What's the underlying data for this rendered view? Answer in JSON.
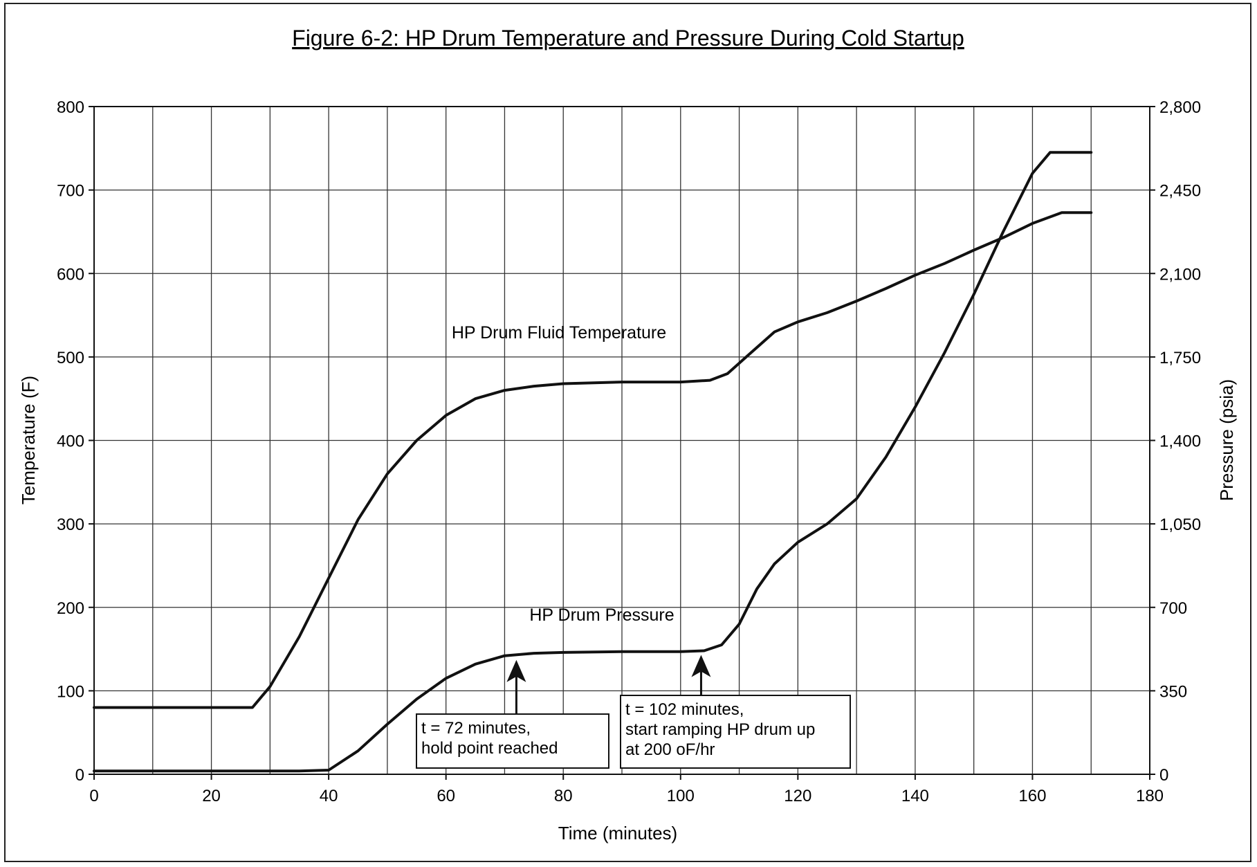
{
  "chart_data": {
    "type": "line",
    "title": "Figure 6-2: HP Drum Temperature and Pressure During Cold Startup",
    "xlabel": "Time (minutes)",
    "ylabel": "Temperature (F)",
    "y2label": "Pressure (psia)",
    "xlim": [
      0,
      180
    ],
    "ylim": [
      0,
      800
    ],
    "y2lim": [
      0,
      2800
    ],
    "x_ticks": [
      0,
      20,
      40,
      60,
      80,
      100,
      120,
      140,
      160,
      180
    ],
    "x_tick_labels": [
      "0",
      "20",
      "40",
      "60",
      "80",
      "100",
      "120",
      "140",
      "160",
      "180"
    ],
    "y_ticks": [
      0,
      100,
      200,
      300,
      400,
      500,
      600,
      700,
      800
    ],
    "y_tick_labels": [
      "0",
      "100",
      "200",
      "300",
      "400",
      "500",
      "600",
      "700",
      "800"
    ],
    "y2_ticks": [
      0,
      350,
      700,
      1050,
      1400,
      1750,
      2100,
      2450,
      2800
    ],
    "y2_tick_labels": [
      "0",
      "350",
      "700",
      "1,050",
      "1,400",
      "1,750",
      "2,100",
      "2,450",
      "2,800"
    ],
    "grid": true,
    "series": [
      {
        "name": "HP Drum Fluid Temperature",
        "axis": "left",
        "x": [
          0,
          27,
          30,
          35,
          40,
          45,
          50,
          55,
          60,
          65,
          70,
          75,
          80,
          90,
          100,
          105,
          108,
          112,
          116,
          120,
          125,
          130,
          135,
          140,
          145,
          150,
          155,
          160,
          165,
          170
        ],
        "y": [
          80,
          80,
          105,
          165,
          235,
          305,
          360,
          400,
          430,
          450,
          460,
          465,
          468,
          470,
          470,
          472,
          480,
          505,
          530,
          542,
          553,
          567,
          582,
          598,
          612,
          628,
          643,
          660,
          673,
          673
        ]
      },
      {
        "name": "HP Drum Pressure",
        "axis": "left",
        "x": [
          0,
          35,
          40,
          45,
          50,
          55,
          60,
          65,
          70,
          75,
          80,
          90,
          100,
          104,
          107,
          110,
          113,
          116,
          120,
          125,
          130,
          135,
          140,
          145,
          150,
          155,
          160,
          163,
          165,
          170
        ],
        "y": [
          4,
          4,
          5,
          28,
          60,
          90,
          115,
          132,
          142,
          145,
          146,
          147,
          147,
          148,
          155,
          180,
          222,
          252,
          278,
          300,
          330,
          380,
          440,
          505,
          575,
          650,
          720,
          745,
          745,
          745
        ]
      }
    ],
    "annotations": [
      {
        "arrow_x": 72,
        "arrow_y": 142,
        "lines": [
          "t = 72 minutes,",
          "hold point reached"
        ]
      },
      {
        "arrow_x": 103.5,
        "arrow_y": 148,
        "lines": [
          "t = 102 minutes,",
          "start ramping HP drum up",
          "at 200 oF/hr"
        ]
      }
    ]
  }
}
